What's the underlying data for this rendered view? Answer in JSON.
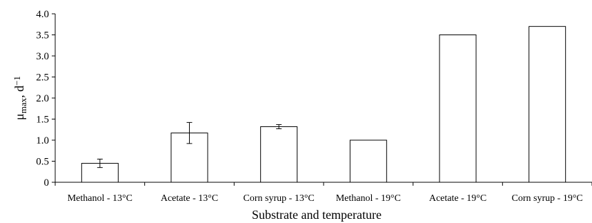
{
  "chart_data": {
    "type": "bar",
    "title": "",
    "xlabel": "Substrate and temperature",
    "ylabel": {
      "base": "μ",
      "subscript": "max",
      "unit": ", d",
      "superscript": "−1"
    },
    "categories": [
      "Methanol - 13°C",
      "Acetate - 13°C",
      "Corn syrup - 13°C",
      "Methanol - 19°C",
      "Acetate - 19°C",
      "Corn syrup - 19°C"
    ],
    "values": [
      0.45,
      1.17,
      1.32,
      1.0,
      3.5,
      3.7
    ],
    "error": [
      0.1,
      0.25,
      0.05,
      null,
      null,
      null
    ],
    "ylim": [
      0,
      4.0
    ],
    "yticks": [
      "0",
      "0.5",
      "1.0",
      "1.5",
      "2.0",
      "2.5",
      "3.0",
      "3.5",
      "4.0"
    ],
    "grid": false,
    "legend": "none",
    "colors": {
      "bar_fill": "#ffffff",
      "bar_stroke": "#000000",
      "axis": "#000000"
    }
  }
}
